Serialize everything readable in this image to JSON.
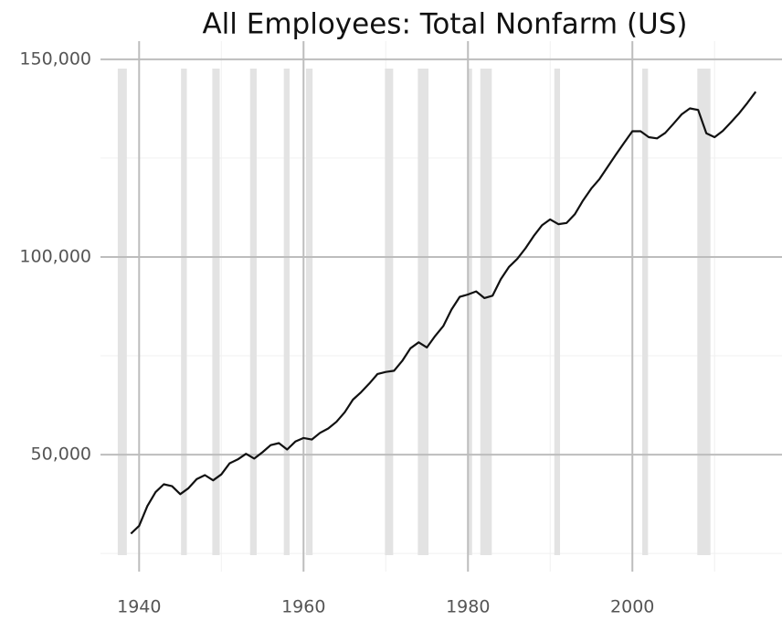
{
  "chart_data": {
    "type": "line",
    "title": "All Employees: Total Nonfarm (US)",
    "xlim": [
      1935.3,
      2018.2
    ],
    "ylim": [
      20400,
      154600
    ],
    "xticks": [
      1940,
      1960,
      1980,
      2000
    ],
    "xminor": [
      1950,
      1970,
      1990,
      2010
    ],
    "yticks": [
      {
        "value": 50000,
        "label": "50,000"
      },
      {
        "value": 100000,
        "label": "100,000"
      },
      {
        "value": 150000,
        "label": "150,000"
      }
    ],
    "yminor": [
      25000,
      75000,
      125000
    ],
    "grid": true,
    "recessions": [
      [
        1937.4,
        1938.5
      ],
      [
        1945.1,
        1945.8
      ],
      [
        1948.9,
        1949.8
      ],
      [
        1953.5,
        1954.3
      ],
      [
        1957.6,
        1958.3
      ],
      [
        1960.3,
        1961.1
      ],
      [
        1969.9,
        1970.9
      ],
      [
        1973.9,
        1975.2
      ],
      [
        1980.0,
        1980.5
      ],
      [
        1981.5,
        1982.9
      ],
      [
        1990.5,
        1991.2
      ],
      [
        2001.2,
        2001.9
      ],
      [
        2007.9,
        2009.5
      ]
    ],
    "recession_color": "#e3e3e3",
    "x": [
      1939,
      1940,
      1941,
      1942,
      1943,
      1944,
      1945,
      1946,
      1947,
      1948,
      1949,
      1950,
      1951,
      1952,
      1953,
      1954,
      1955,
      1956,
      1957,
      1958,
      1959,
      1960,
      1961,
      1962,
      1963,
      1964,
      1965,
      1966,
      1967,
      1968,
      1969,
      1970,
      1971,
      1972,
      1973,
      1974,
      1975,
      1976,
      1977,
      1978,
      1979,
      1980,
      1981,
      1982,
      1983,
      1984,
      1985,
      1986,
      1987,
      1988,
      1989,
      1990,
      1991,
      1992,
      1993,
      1994,
      1995,
      1996,
      1997,
      1998,
      1999,
      2000,
      2001,
      2002,
      2003,
      2004,
      2005,
      2006,
      2007,
      2008,
      2009,
      2010,
      2011,
      2012,
      2013,
      2014,
      2015
    ],
    "series": [
      {
        "name": "All Employees",
        "color": "#111111",
        "values": [
          30000,
          32000,
          37000,
          40500,
          42500,
          42000,
          40000,
          41500,
          43800,
          44800,
          43500,
          45000,
          47800,
          48800,
          50200,
          49000,
          50600,
          52400,
          52900,
          51300,
          53300,
          54200,
          53800,
          55500,
          56600,
          58300,
          60700,
          63900,
          65800,
          68000,
          70400,
          70900,
          71200,
          73700,
          76900,
          78400,
          77100,
          80000,
          82500,
          86700,
          89900,
          90500,
          91300,
          89600,
          90200,
          94400,
          97500,
          99500,
          102200,
          105300,
          108000,
          109500,
          108300,
          108600,
          110800,
          114300,
          117300,
          119700,
          122800,
          125900,
          128900,
          131800,
          131800,
          130300,
          130000,
          131400,
          133700,
          136100,
          137600,
          137200,
          131300,
          130300,
          131900,
          134100,
          136400,
          139000,
          141800
        ]
      }
    ]
  }
}
